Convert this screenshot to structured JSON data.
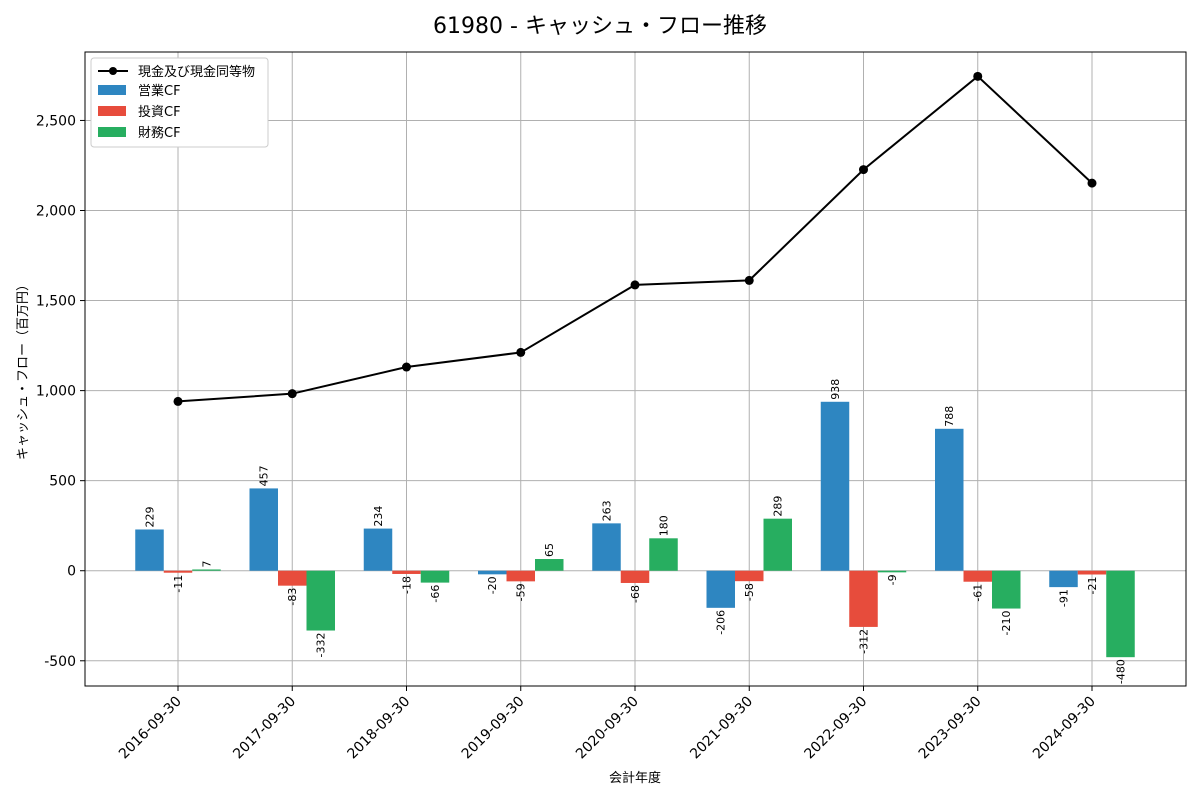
{
  "chart_data": {
    "type": "bar",
    "title": "61980 - キャッシュ・フロー推移",
    "xlabel": "会計年度",
    "ylabel": "キャッシュ・フロー（百万円）",
    "ylim": [
      -640,
      2880
    ],
    "yticks": [
      -500,
      0,
      500,
      1000,
      1500,
      2000,
      2500
    ],
    "ytick_labels": [
      "-500",
      "0",
      "500",
      "1,000",
      "1,500",
      "2,000",
      "2,500"
    ],
    "categories": [
      "2016-09-30",
      "2017-09-30",
      "2018-09-30",
      "2019-09-30",
      "2020-09-30",
      "2021-09-30",
      "2022-09-30",
      "2023-09-30",
      "2024-09-30"
    ],
    "series": [
      {
        "name": "営業CF",
        "kind": "bar",
        "color": "#2e86c1",
        "values": [
          229,
          457,
          234,
          -20,
          263,
          -206,
          938,
          788,
          -91
        ]
      },
      {
        "name": "投資CF",
        "kind": "bar",
        "color": "#e74c3c",
        "values": [
          -11,
          -83,
          -18,
          -59,
          -68,
          -58,
          -312,
          -61,
          -21
        ]
      },
      {
        "name": "財務CF",
        "kind": "bar",
        "color": "#27ae60",
        "values": [
          7,
          -332,
          -66,
          65,
          180,
          289,
          -9,
          -210,
          -480
        ]
      },
      {
        "name": "現金及び現金同等物",
        "kind": "line",
        "color": "#000000",
        "values": [
          940,
          983,
          1131,
          1212,
          1587,
          1612,
          2227,
          2745,
          2152
        ]
      }
    ],
    "legend": "top-left",
    "grid": true
  }
}
